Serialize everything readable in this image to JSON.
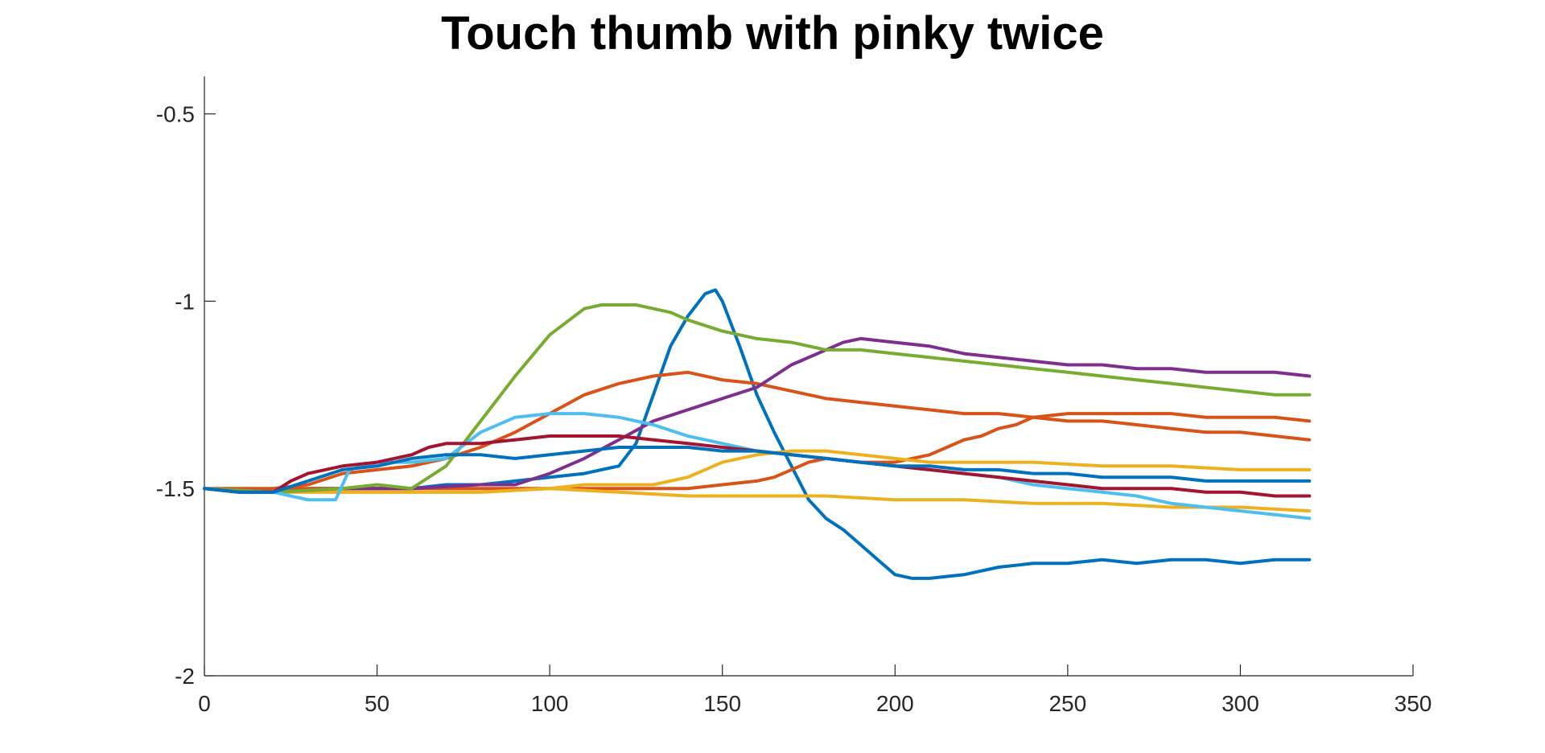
{
  "chart_data": {
    "type": "line",
    "title": "Touch thumb with pinky twice",
    "xlabel": "",
    "ylabel": "",
    "xlim": [
      0,
      350
    ],
    "ylim": [
      -2,
      -0.4
    ],
    "xticks": [
      0,
      50,
      100,
      150,
      200,
      250,
      300,
      350
    ],
    "yticks": [
      -2,
      -1.5,
      -1,
      -0.5
    ],
    "xtick_labels": [
      "0",
      "50",
      "100",
      "150",
      "200",
      "250",
      "300",
      "350"
    ],
    "ytick_labels": [
      "-2",
      "-1.5",
      "-1",
      "-0.5"
    ],
    "grid": false,
    "legend": "none",
    "series": [
      {
        "color": "#0072BD",
        "points": [
          [
            0,
            -1.5
          ],
          [
            10,
            -1.51
          ],
          [
            20,
            -1.51
          ],
          [
            30,
            -1.5
          ],
          [
            40,
            -1.5
          ],
          [
            50,
            -1.5
          ],
          [
            60,
            -1.5
          ],
          [
            70,
            -1.49
          ],
          [
            80,
            -1.49
          ],
          [
            90,
            -1.48
          ],
          [
            100,
            -1.47
          ],
          [
            110,
            -1.46
          ],
          [
            120,
            -1.44
          ],
          [
            125,
            -1.38
          ],
          [
            130,
            -1.25
          ],
          [
            135,
            -1.12
          ],
          [
            140,
            -1.04
          ],
          [
            145,
            -0.98
          ],
          [
            148,
            -0.97
          ],
          [
            150,
            -1.0
          ],
          [
            155,
            -1.12
          ],
          [
            160,
            -1.25
          ],
          [
            165,
            -1.35
          ],
          [
            170,
            -1.44
          ],
          [
            175,
            -1.53
          ],
          [
            180,
            -1.58
          ],
          [
            185,
            -1.61
          ],
          [
            190,
            -1.65
          ],
          [
            195,
            -1.69
          ],
          [
            200,
            -1.73
          ],
          [
            205,
            -1.74
          ],
          [
            210,
            -1.74
          ],
          [
            220,
            -1.73
          ],
          [
            230,
            -1.71
          ],
          [
            240,
            -1.7
          ],
          [
            250,
            -1.7
          ],
          [
            260,
            -1.69
          ],
          [
            270,
            -1.7
          ],
          [
            280,
            -1.69
          ],
          [
            290,
            -1.69
          ],
          [
            300,
            -1.7
          ],
          [
            310,
            -1.69
          ],
          [
            320,
            -1.69
          ]
        ]
      },
      {
        "color": "#D95319",
        "points": [
          [
            0,
            -1.5
          ],
          [
            10,
            -1.51
          ],
          [
            20,
            -1.5
          ],
          [
            30,
            -1.49
          ],
          [
            40,
            -1.46
          ],
          [
            50,
            -1.45
          ],
          [
            60,
            -1.44
          ],
          [
            70,
            -1.42
          ],
          [
            80,
            -1.39
          ],
          [
            90,
            -1.35
          ],
          [
            100,
            -1.3
          ],
          [
            110,
            -1.25
          ],
          [
            120,
            -1.22
          ],
          [
            130,
            -1.2
          ],
          [
            140,
            -1.19
          ],
          [
            150,
            -1.21
          ],
          [
            160,
            -1.22
          ],
          [
            170,
            -1.24
          ],
          [
            180,
            -1.26
          ],
          [
            190,
            -1.27
          ],
          [
            200,
            -1.28
          ],
          [
            210,
            -1.29
          ],
          [
            220,
            -1.3
          ],
          [
            230,
            -1.3
          ],
          [
            240,
            -1.31
          ],
          [
            250,
            -1.32
          ],
          [
            260,
            -1.32
          ],
          [
            270,
            -1.33
          ],
          [
            280,
            -1.34
          ],
          [
            290,
            -1.35
          ],
          [
            300,
            -1.35
          ],
          [
            310,
            -1.36
          ],
          [
            320,
            -1.37
          ]
        ]
      },
      {
        "color": "#D95319",
        "points": [
          [
            0,
            -1.5
          ],
          [
            20,
            -1.5
          ],
          [
            40,
            -1.5
          ],
          [
            60,
            -1.5
          ],
          [
            80,
            -1.5
          ],
          [
            100,
            -1.5
          ],
          [
            120,
            -1.5
          ],
          [
            140,
            -1.5
          ],
          [
            150,
            -1.49
          ],
          [
            160,
            -1.48
          ],
          [
            165,
            -1.47
          ],
          [
            170,
            -1.45
          ],
          [
            175,
            -1.43
          ],
          [
            180,
            -1.42
          ],
          [
            190,
            -1.43
          ],
          [
            200,
            -1.43
          ],
          [
            210,
            -1.41
          ],
          [
            215,
            -1.39
          ],
          [
            220,
            -1.37
          ],
          [
            225,
            -1.36
          ],
          [
            230,
            -1.34
          ],
          [
            235,
            -1.33
          ],
          [
            240,
            -1.31
          ],
          [
            250,
            -1.3
          ],
          [
            260,
            -1.3
          ],
          [
            270,
            -1.3
          ],
          [
            280,
            -1.3
          ],
          [
            290,
            -1.31
          ],
          [
            300,
            -1.31
          ],
          [
            310,
            -1.31
          ],
          [
            320,
            -1.32
          ]
        ]
      },
      {
        "color": "#EDB120",
        "points": [
          [
            0,
            -1.5
          ],
          [
            20,
            -1.51
          ],
          [
            40,
            -1.51
          ],
          [
            60,
            -1.51
          ],
          [
            80,
            -1.51
          ],
          [
            100,
            -1.5
          ],
          [
            110,
            -1.49
          ],
          [
            120,
            -1.49
          ],
          [
            130,
            -1.49
          ],
          [
            140,
            -1.47
          ],
          [
            150,
            -1.43
          ],
          [
            160,
            -1.41
          ],
          [
            170,
            -1.4
          ],
          [
            180,
            -1.4
          ],
          [
            190,
            -1.41
          ],
          [
            200,
            -1.42
          ],
          [
            210,
            -1.43
          ],
          [
            220,
            -1.43
          ],
          [
            240,
            -1.43
          ],
          [
            260,
            -1.44
          ],
          [
            280,
            -1.44
          ],
          [
            300,
            -1.45
          ],
          [
            320,
            -1.45
          ]
        ]
      },
      {
        "color": "#EDB120",
        "points": [
          [
            0,
            -1.5
          ],
          [
            20,
            -1.51
          ],
          [
            40,
            -1.51
          ],
          [
            60,
            -1.51
          ],
          [
            80,
            -1.51
          ],
          [
            100,
            -1.5
          ],
          [
            120,
            -1.51
          ],
          [
            140,
            -1.52
          ],
          [
            160,
            -1.52
          ],
          [
            180,
            -1.52
          ],
          [
            200,
            -1.53
          ],
          [
            220,
            -1.53
          ],
          [
            240,
            -1.54
          ],
          [
            260,
            -1.54
          ],
          [
            280,
            -1.55
          ],
          [
            300,
            -1.55
          ],
          [
            320,
            -1.56
          ]
        ]
      },
      {
        "color": "#7E2F8E",
        "points": [
          [
            0,
            -1.5
          ],
          [
            20,
            -1.51
          ],
          [
            40,
            -1.5
          ],
          [
            60,
            -1.5
          ],
          [
            80,
            -1.49
          ],
          [
            90,
            -1.49
          ],
          [
            100,
            -1.46
          ],
          [
            110,
            -1.42
          ],
          [
            120,
            -1.37
          ],
          [
            130,
            -1.32
          ],
          [
            140,
            -1.29
          ],
          [
            150,
            -1.26
          ],
          [
            160,
            -1.23
          ],
          [
            170,
            -1.17
          ],
          [
            180,
            -1.13
          ],
          [
            185,
            -1.11
          ],
          [
            190,
            -1.1
          ],
          [
            200,
            -1.11
          ],
          [
            210,
            -1.12
          ],
          [
            220,
            -1.14
          ],
          [
            230,
            -1.15
          ],
          [
            240,
            -1.16
          ],
          [
            250,
            -1.17
          ],
          [
            260,
            -1.17
          ],
          [
            270,
            -1.18
          ],
          [
            280,
            -1.18
          ],
          [
            290,
            -1.19
          ],
          [
            300,
            -1.19
          ],
          [
            310,
            -1.19
          ],
          [
            320,
            -1.2
          ]
        ]
      },
      {
        "color": "#77AC30",
        "points": [
          [
            0,
            -1.5
          ],
          [
            20,
            -1.51
          ],
          [
            40,
            -1.5
          ],
          [
            50,
            -1.49
          ],
          [
            60,
            -1.5
          ],
          [
            70,
            -1.44
          ],
          [
            80,
            -1.32
          ],
          [
            90,
            -1.2
          ],
          [
            100,
            -1.09
          ],
          [
            110,
            -1.02
          ],
          [
            115,
            -1.01
          ],
          [
            125,
            -1.01
          ],
          [
            135,
            -1.03
          ],
          [
            140,
            -1.05
          ],
          [
            150,
            -1.08
          ],
          [
            160,
            -1.1
          ],
          [
            170,
            -1.11
          ],
          [
            180,
            -1.13
          ],
          [
            190,
            -1.13
          ],
          [
            200,
            -1.14
          ],
          [
            210,
            -1.15
          ],
          [
            220,
            -1.16
          ],
          [
            230,
            -1.17
          ],
          [
            240,
            -1.18
          ],
          [
            250,
            -1.19
          ],
          [
            260,
            -1.2
          ],
          [
            270,
            -1.21
          ],
          [
            280,
            -1.22
          ],
          [
            290,
            -1.23
          ],
          [
            300,
            -1.24
          ],
          [
            310,
            -1.25
          ],
          [
            320,
            -1.25
          ]
        ]
      },
      {
        "color": "#4DBEEE",
        "points": [
          [
            0,
            -1.5
          ],
          [
            10,
            -1.51
          ],
          [
            20,
            -1.51
          ],
          [
            30,
            -1.53
          ],
          [
            38,
            -1.53
          ],
          [
            42,
            -1.45
          ],
          [
            50,
            -1.43
          ],
          [
            60,
            -1.43
          ],
          [
            70,
            -1.42
          ],
          [
            80,
            -1.35
          ],
          [
            90,
            -1.31
          ],
          [
            100,
            -1.3
          ],
          [
            110,
            -1.3
          ],
          [
            120,
            -1.31
          ],
          [
            130,
            -1.33
          ],
          [
            140,
            -1.36
          ],
          [
            150,
            -1.38
          ],
          [
            160,
            -1.4
          ],
          [
            170,
            -1.41
          ],
          [
            180,
            -1.42
          ],
          [
            190,
            -1.43
          ],
          [
            200,
            -1.44
          ],
          [
            210,
            -1.45
          ],
          [
            220,
            -1.46
          ],
          [
            230,
            -1.47
          ],
          [
            240,
            -1.49
          ],
          [
            250,
            -1.5
          ],
          [
            260,
            -1.51
          ],
          [
            270,
            -1.52
          ],
          [
            280,
            -1.54
          ],
          [
            290,
            -1.55
          ],
          [
            300,
            -1.56
          ],
          [
            310,
            -1.57
          ],
          [
            320,
            -1.58
          ]
        ]
      },
      {
        "color": "#A2142F",
        "points": [
          [
            0,
            -1.5
          ],
          [
            10,
            -1.51
          ],
          [
            20,
            -1.51
          ],
          [
            25,
            -1.48
          ],
          [
            30,
            -1.46
          ],
          [
            40,
            -1.44
          ],
          [
            50,
            -1.43
          ],
          [
            60,
            -1.41
          ],
          [
            65,
            -1.39
          ],
          [
            70,
            -1.38
          ],
          [
            80,
            -1.38
          ],
          [
            90,
            -1.37
          ],
          [
            100,
            -1.36
          ],
          [
            110,
            -1.36
          ],
          [
            120,
            -1.36
          ],
          [
            130,
            -1.37
          ],
          [
            140,
            -1.38
          ],
          [
            150,
            -1.39
          ],
          [
            160,
            -1.4
          ],
          [
            170,
            -1.41
          ],
          [
            180,
            -1.42
          ],
          [
            190,
            -1.43
          ],
          [
            200,
            -1.44
          ],
          [
            210,
            -1.45
          ],
          [
            220,
            -1.46
          ],
          [
            230,
            -1.47
          ],
          [
            240,
            -1.48
          ],
          [
            250,
            -1.49
          ],
          [
            260,
            -1.5
          ],
          [
            270,
            -1.5
          ],
          [
            280,
            -1.5
          ],
          [
            290,
            -1.51
          ],
          [
            300,
            -1.51
          ],
          [
            310,
            -1.52
          ],
          [
            320,
            -1.52
          ]
        ]
      },
      {
        "color": "#0072BD",
        "points": [
          [
            0,
            -1.5
          ],
          [
            10,
            -1.51
          ],
          [
            20,
            -1.51
          ],
          [
            30,
            -1.48
          ],
          [
            40,
            -1.45
          ],
          [
            50,
            -1.44
          ],
          [
            60,
            -1.42
          ],
          [
            70,
            -1.41
          ],
          [
            80,
            -1.41
          ],
          [
            90,
            -1.42
          ],
          [
            100,
            -1.41
          ],
          [
            110,
            -1.4
          ],
          [
            120,
            -1.39
          ],
          [
            130,
            -1.39
          ],
          [
            140,
            -1.39
          ],
          [
            150,
            -1.4
          ],
          [
            160,
            -1.4
          ],
          [
            170,
            -1.41
          ],
          [
            180,
            -1.42
          ],
          [
            190,
            -1.43
          ],
          [
            200,
            -1.44
          ],
          [
            210,
            -1.44
          ],
          [
            220,
            -1.45
          ],
          [
            230,
            -1.45
          ],
          [
            240,
            -1.46
          ],
          [
            250,
            -1.46
          ],
          [
            260,
            -1.47
          ],
          [
            270,
            -1.47
          ],
          [
            280,
            -1.47
          ],
          [
            290,
            -1.48
          ],
          [
            300,
            -1.48
          ],
          [
            310,
            -1.48
          ],
          [
            320,
            -1.48
          ]
        ]
      }
    ]
  }
}
